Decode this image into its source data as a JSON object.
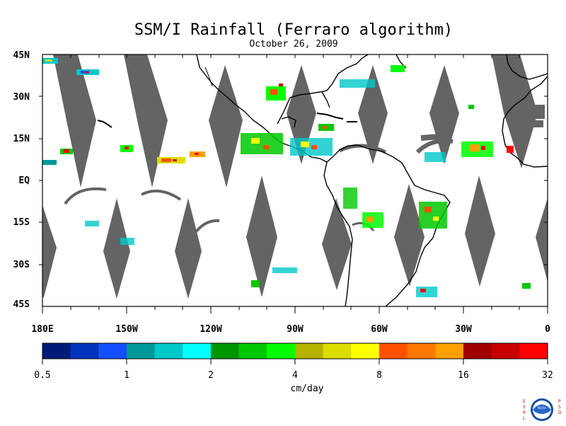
{
  "map": {
    "title": "SSM/I Rainfall (Ferraro algorithm)",
    "date": "October 26, 2009",
    "lat_labels": [
      "45N",
      "30N",
      "15N",
      "EQ",
      "15S",
      "30S",
      "45S"
    ],
    "lon_labels": [
      "180E",
      "150W",
      "120W",
      "90W",
      "60W",
      "30W",
      "0"
    ],
    "swath_gap_color": "#646464",
    "coast_color": "#000000"
  },
  "colorbar": {
    "tick_labels": [
      "0.5",
      "1",
      "2",
      "4",
      "8",
      "16",
      "32"
    ],
    "units": "cm/day",
    "colors": [
      "#001b7a",
      "#0033bb",
      "#1450ff",
      "#009999",
      "#00c8c8",
      "#00ffff",
      "#009600",
      "#00c800",
      "#00ff00",
      "#b4b400",
      "#dcdc00",
      "#ffff00",
      "#ff5000",
      "#ff7800",
      "#ffa000",
      "#a00000",
      "#c80000",
      "#ff0000"
    ]
  },
  "logo": {
    "left_text": "ESRL",
    "right_text": "PSD",
    "center_text": "NOAA"
  }
}
